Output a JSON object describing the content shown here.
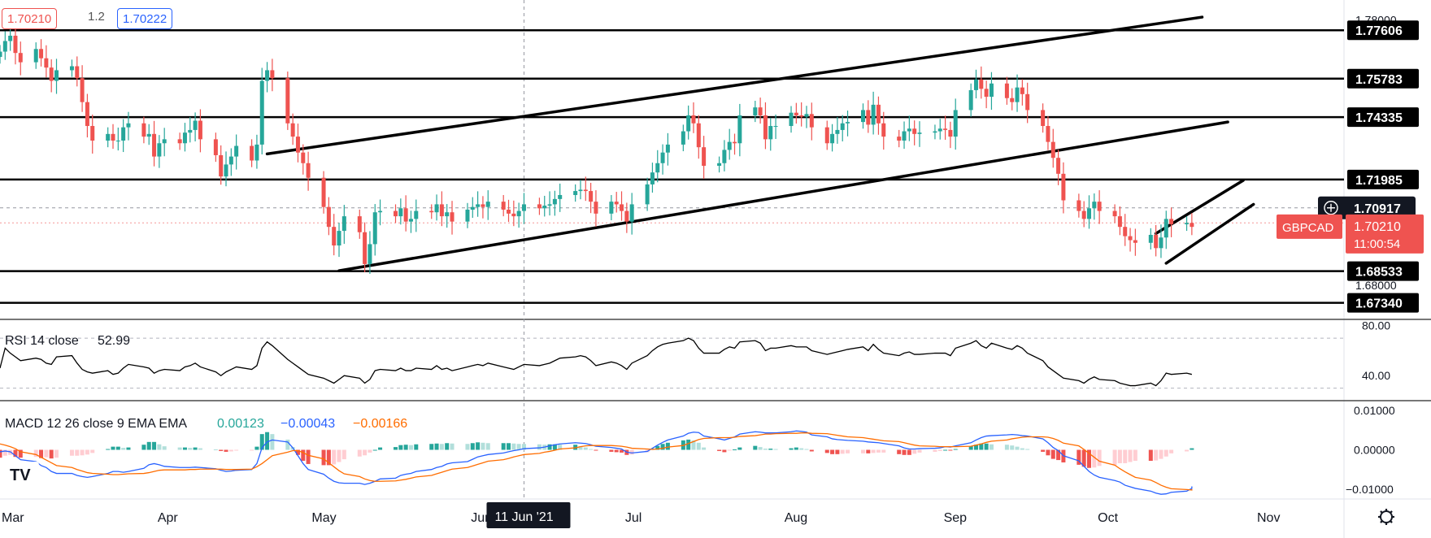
{
  "quote": {
    "sell_price": "1.70210",
    "spread": "1.2",
    "buy_price": "1.70222"
  },
  "instrument": {
    "symbol": "GBPCAD",
    "last_price": "1.70210",
    "countdown": "11:00:54",
    "crosshair_price": "1.70917"
  },
  "colors": {
    "up": "#26a69a",
    "down": "#ef5350",
    "rsi": "#000000",
    "macd": "#2962ff",
    "signal": "#ff6d00",
    "hist_pos_strong": "#26a69a",
    "hist_pos_weak": "#b2dfdb",
    "hist_neg_strong": "#ef5350",
    "hist_neg_weak": "#ffcdd2"
  },
  "indicators": {
    "rsi_label": "RSI 14 close",
    "rsi_value": "52.99",
    "macd_label": "MACD 12 26 close 9 EMA EMA",
    "macd_hist": "0.00123",
    "macd_line": "−0.00043",
    "macd_signal": "−0.00166"
  },
  "time_axis": {
    "labels": [
      "Mar",
      "Apr",
      "May",
      "Jun",
      "Jul",
      "Aug",
      "Sep",
      "Oct",
      "Nov"
    ],
    "crosshair_date": "11 Jun '21"
  },
  "chart_data": [
    {
      "type": "candlestick",
      "title": "GBPCAD",
      "ylim": [
        1.669,
        1.785
      ],
      "y_ticks": [
        "1.78000",
        "1.68000"
      ],
      "horizontal_levels": [
        {
          "label": "1.77606",
          "value": 1.77606
        },
        {
          "label": "1.75783",
          "value": 1.75783
        },
        {
          "label": "1.74335",
          "value": 1.74335
        },
        {
          "label": "1.71985",
          "value": 1.71985
        },
        {
          "label": "1.68533",
          "value": 1.68533
        },
        {
          "label": "1.67340",
          "value": 1.6734
        }
      ],
      "reference_level": 1.7035,
      "trendlines": [
        {
          "name": "channel-top",
          "from": [
            "2021-04-22",
            1.7295
          ],
          "to": [
            "2021-10-21",
            1.781
          ]
        },
        {
          "name": "channel-bottom",
          "from": [
            "2021-05-06",
            1.6855
          ],
          "to": [
            "2021-10-26",
            1.7415
          ]
        },
        {
          "name": "rising-upper",
          "from": [
            "2021-10-12",
            1.6995
          ],
          "to": [
            "2021-10-29",
            1.7195
          ]
        },
        {
          "name": "rising-lower",
          "from": [
            "2021-10-14",
            1.6883
          ],
          "to": [
            "2021-10-31",
            1.7105
          ]
        }
      ],
      "x_range": [
        "2021-03-01",
        "2021-11-01"
      ],
      "closes": [
        1.768,
        1.772,
        1.774,
        1.7675,
        1.764,
        1.769,
        1.7655,
        1.762,
        1.757,
        1.761,
        1.7625,
        1.758,
        1.749,
        1.74,
        1.7345,
        1.737,
        1.7345,
        1.7345,
        1.7395,
        1.741,
        1.736,
        1.737,
        1.7285,
        1.7335,
        1.735,
        1.7335,
        1.7375,
        1.7385,
        1.742,
        1.735,
        1.729,
        1.721,
        1.7255,
        1.7285,
        1.7325,
        1.727,
        1.733,
        1.757,
        1.761,
        1.758,
        1.741,
        1.736,
        1.73,
        1.726,
        1.7205,
        1.7095,
        1.702,
        1.695,
        1.7005,
        1.706,
        1.7,
        1.688,
        1.6955,
        1.7075,
        1.708,
        1.706,
        1.709,
        1.704,
        1.705,
        1.708,
        1.7075,
        1.7105,
        1.706,
        1.7075,
        1.704,
        1.7085,
        1.7095,
        1.7105,
        1.7095,
        1.7115,
        1.7085,
        1.707,
        1.706,
        1.708,
        1.7105,
        1.709,
        1.71,
        1.7105,
        1.7125,
        1.714,
        1.7155,
        1.716,
        1.7155,
        1.7115,
        1.707,
        1.7115,
        1.7105,
        1.708,
        1.704,
        1.7105,
        1.718,
        1.7225,
        1.726,
        1.73,
        1.733,
        1.738,
        1.744,
        1.741,
        1.732,
        1.725,
        1.726,
        1.731,
        1.734,
        1.7335,
        1.744,
        1.747,
        1.744,
        1.735,
        1.74,
        1.74,
        1.745,
        1.744,
        1.7435,
        1.7445,
        1.7395,
        1.7335,
        1.737,
        1.7385,
        1.741,
        1.7415,
        1.746,
        1.7405,
        1.748,
        1.741,
        1.736,
        1.7345,
        1.738,
        1.739,
        1.737,
        1.7375,
        1.738,
        1.739,
        1.7385,
        1.736,
        1.746,
        1.7535,
        1.7575,
        1.754,
        1.751,
        1.756,
        1.7505,
        1.749,
        1.7545,
        1.752,
        1.746,
        1.74,
        1.734,
        1.728,
        1.722,
        1.712,
        1.708,
        1.705,
        1.709,
        1.7115,
        1.708,
        1.706,
        1.702,
        1.6985,
        1.697,
        1.696,
        1.699,
        1.694,
        1.698,
        1.705,
        1.703,
        1.7035,
        1.702
      ]
    },
    {
      "type": "line",
      "title": "RSI 14 close",
      "ylim": [
        20,
        85
      ],
      "y_ticks": [
        "80.00",
        "40.00"
      ],
      "series": [
        {
          "name": "RSI 14",
          "values": [
            46,
            62,
            58,
            55,
            52,
            54,
            53,
            50,
            49,
            55,
            56,
            50,
            45,
            43,
            42,
            44,
            41,
            42,
            46,
            49,
            47,
            46,
            42,
            44,
            45,
            44,
            47,
            48,
            50,
            47,
            43,
            40,
            43,
            45,
            47,
            45,
            48,
            62,
            67,
            64,
            53,
            50,
            47,
            44,
            41,
            38,
            36,
            34,
            37,
            40,
            38,
            34,
            37,
            44,
            45,
            44,
            46,
            44,
            44,
            46,
            45,
            48,
            45,
            46,
            44,
            47,
            48,
            49,
            48,
            50,
            47,
            46,
            45,
            47,
            49,
            48,
            49,
            50,
            52,
            54,
            55,
            56,
            55,
            52,
            48,
            51,
            50,
            48,
            45,
            50,
            56,
            60,
            63,
            65,
            66,
            68,
            70,
            68,
            62,
            58,
            58,
            61,
            63,
            62,
            67,
            68,
            66,
            60,
            62,
            62,
            64,
            63,
            63,
            63,
            60,
            57,
            58,
            59,
            60,
            61,
            63,
            60,
            65,
            61,
            58,
            56,
            58,
            59,
            57,
            57,
            58,
            58,
            58,
            56,
            62,
            66,
            68,
            64,
            62,
            66,
            62,
            61,
            64,
            62,
            58,
            52,
            47,
            44,
            41,
            38,
            36,
            34,
            37,
            39,
            37,
            36,
            34,
            33,
            32,
            32,
            34,
            32,
            36,
            42,
            41,
            42,
            41
          ]
        }
      ]
    },
    {
      "type": "line+bar",
      "title": "MACD 12 26 close 9 EMA EMA",
      "ylim": [
        -0.0125,
        0.0125
      ],
      "y_ticks": [
        "0.01000",
        "0.00000",
        "−0.01000"
      ],
      "series": [
        {
          "name": "MACD",
          "values": [
            -0.0005,
            -0.0003,
            -0.0005,
            -0.0015,
            -0.0025,
            -0.003,
            -0.004,
            -0.0045,
            -0.0055,
            -0.006,
            -0.006,
            -0.0065,
            -0.0068,
            -0.007,
            -0.0068,
            -0.006,
            -0.0055,
            -0.0055,
            -0.0057,
            -0.0055,
            -0.0047,
            -0.0038,
            -0.0035,
            -0.0038,
            -0.0042,
            -0.0045,
            -0.0045,
            -0.0045,
            -0.0044,
            -0.0045,
            -0.0048,
            -0.0052,
            -0.0055,
            -0.0054,
            -0.0052,
            -0.005,
            -0.0035,
            0.0005,
            0.002,
            0.0025,
            0.002,
            0.0005,
            -0.0015,
            -0.0035,
            -0.005,
            -0.0062,
            -0.0072,
            -0.008,
            -0.0084,
            -0.0085,
            -0.0085,
            -0.0088,
            -0.0085,
            -0.008,
            -0.0074,
            -0.0072,
            -0.0065,
            -0.0062,
            -0.006,
            -0.0055,
            -0.005,
            -0.0045,
            -0.0042,
            -0.0036,
            -0.0033,
            -0.003,
            -0.0024,
            -0.0018,
            -0.0015,
            -0.0012,
            -0.0008,
            -0.0005,
            -0.0002,
            0.0,
            0.0003,
            0.0005,
            0.0007,
            0.001,
            0.0013,
            0.0015,
            0.0018,
            0.0017,
            0.0016,
            0.0013,
            0.0009,
            0.0006,
            0.0004,
            0.0002,
            -0.0006,
            -0.0008,
            -0.0004,
            0.0004,
            0.0012,
            0.0019,
            0.0025,
            0.0035,
            0.0042,
            0.0045,
            0.0044,
            0.0035,
            0.0028,
            0.0025,
            0.0029,
            0.0033,
            0.004,
            0.0046,
            0.0045,
            0.0043,
            0.0043,
            0.0043,
            0.0046,
            0.0048,
            0.0047,
            0.0045,
            0.0038,
            0.0033,
            0.0028,
            0.0026,
            0.0025,
            0.0024,
            0.0022,
            0.002,
            0.0019,
            0.0018,
            0.0016,
            0.001,
            0.0005,
            0.0002,
            0.0002,
            0.0003,
            0.0004,
            0.0005,
            0.0008,
            0.0007,
            0.001,
            0.0018,
            0.0025,
            0.0031,
            0.0035,
            0.0036,
            0.0038,
            0.0039,
            0.0038,
            0.0036,
            0.0035,
            0.0028,
            0.0018,
            0.0006,
            -0.0002,
            -0.0015,
            -0.0028,
            -0.0042,
            -0.0055,
            -0.0064,
            -0.007,
            -0.0078,
            -0.0082,
            -0.009,
            -0.0094,
            -0.0098,
            -0.0105,
            -0.011,
            -0.0113,
            -0.0112,
            -0.0108,
            -0.0105,
            -0.0098,
            -0.0093
          ]
        },
        {
          "name": "Signal",
          "values": [
            0.0015,
            0.0012,
            0.0008,
            0.0003,
            -0.0005,
            -0.0012,
            -0.0019,
            -0.0026,
            -0.0033,
            -0.004,
            -0.0045,
            -0.005,
            -0.0054,
            -0.0058,
            -0.006,
            -0.0062,
            -0.0063,
            -0.0063,
            -0.0062,
            -0.0061,
            -0.006,
            -0.0058,
            -0.0055,
            -0.0052,
            -0.0051,
            -0.0051,
            -0.0051,
            -0.005,
            -0.005,
            -0.0049,
            -0.0049,
            -0.0049,
            -0.005,
            -0.005,
            -0.005,
            -0.0049,
            -0.0043,
            -0.0035,
            -0.0025,
            -0.0015,
            -0.0006,
            -0.0002,
            -0.0002,
            -0.0007,
            -0.0014,
            -0.0023,
            -0.0033,
            -0.0043,
            -0.0053,
            -0.0061,
            -0.0068,
            -0.0074,
            -0.0078,
            -0.008,
            -0.008,
            -0.0079,
            -0.0077,
            -0.0075,
            -0.0072,
            -0.0069,
            -0.0065,
            -0.0061,
            -0.0057,
            -0.0053,
            -0.0049,
            -0.0045,
            -0.0041,
            -0.0037,
            -0.0033,
            -0.0029,
            -0.0025,
            -0.0022,
            -0.0018,
            -0.0015,
            -0.0012,
            -0.0009,
            -0.0006,
            -0.0004,
            -0.0001,
            0.0002,
            0.0005,
            0.0008,
            0.001,
            0.0011,
            0.0011,
            0.0011,
            0.001,
            0.0009,
            0.0007,
            0.0004,
            0.0002,
            0.0001,
            0.0002,
            0.0004,
            0.0007,
            0.0011,
            0.0016,
            0.0021,
            0.0026,
            0.0029,
            0.0031,
            0.0031,
            0.0031,
            0.0032,
            0.0034,
            0.0036,
            0.0038,
            0.004,
            0.004,
            0.0041,
            0.0042,
            0.0042,
            0.0043,
            0.0043,
            0.0042,
            0.0041,
            0.0039,
            0.0037,
            0.0035,
            0.0033,
            0.0031,
            0.0029,
            0.0027,
            0.0025,
            0.0023,
            0.0021,
            0.0018,
            0.0015,
            0.0012,
            0.001,
            0.0009,
            0.0008,
            0.0008,
            0.0008,
            0.0008,
            0.0009,
            0.0012,
            0.0015,
            0.0019,
            0.0022,
            0.0025,
            0.0028,
            0.003,
            0.0032,
            0.0033,
            0.0033,
            0.0032,
            0.0029,
            0.0024,
            0.0017,
            0.001,
            0.0001,
            -0.0009,
            -0.0019,
            -0.0029,
            -0.0039,
            -0.0048,
            -0.0056,
            -0.0063,
            -0.007,
            -0.0077,
            -0.0083,
            -0.009,
            -0.0095,
            -0.0099,
            -0.0101,
            -0.0102,
            -0.0102,
            -0.01
          ]
        }
      ]
    }
  ]
}
